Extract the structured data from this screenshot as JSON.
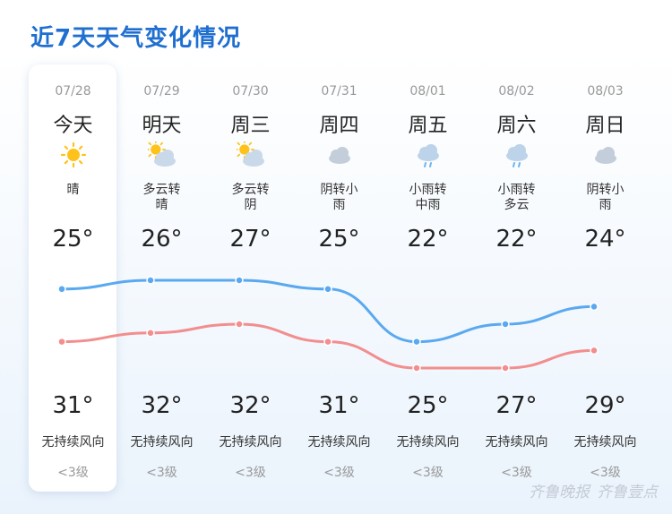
{
  "title": "近7天天气变化情况",
  "days": [
    {
      "date": "07/28",
      "name": "今天",
      "icon": "sun-icon",
      "desc": [
        "晴"
      ],
      "high": "25°",
      "low": "31°",
      "wind": "无持续风向",
      "level": "<3级"
    },
    {
      "date": "07/29",
      "name": "明天",
      "icon": "partly-cloudy-icon",
      "desc": [
        "多云转",
        "晴"
      ],
      "high": "26°",
      "low": "32°",
      "wind": "无持续风向",
      "level": "<3级"
    },
    {
      "date": "07/30",
      "name": "周三",
      "icon": "partly-cloudy-icon",
      "desc": [
        "多云转",
        "阴"
      ],
      "high": "27°",
      "low": "32°",
      "wind": "无持续风向",
      "level": "<3级"
    },
    {
      "date": "07/31",
      "name": "周四",
      "icon": "cloud-icon",
      "desc": [
        "阴转小",
        "雨"
      ],
      "high": "25°",
      "low": "31°",
      "wind": "无持续风向",
      "level": "<3级"
    },
    {
      "date": "08/01",
      "name": "周五",
      "icon": "light-rain-icon",
      "desc": [
        "小雨转",
        "中雨"
      ],
      "high": "22°",
      "low": "25°",
      "wind": "无持续风向",
      "level": "<3级"
    },
    {
      "date": "08/02",
      "name": "周六",
      "icon": "light-rain-icon",
      "desc": [
        "小雨转",
        "多云"
      ],
      "high": "22°",
      "low": "27°",
      "wind": "无持续风向",
      "level": "<3级"
    },
    {
      "date": "08/03",
      "name": "周日",
      "icon": "cloud-icon",
      "desc": [
        "阴转小",
        "雨"
      ],
      "high": "24°",
      "low": "29°",
      "wind": "无持续风向",
      "level": "<3级"
    }
  ],
  "chart_data": {
    "type": "line",
    "categories": [
      "07/28",
      "07/29",
      "07/30",
      "07/31",
      "08/01",
      "08/02",
      "08/03"
    ],
    "series": [
      {
        "values": [
          25,
          26,
          27,
          25,
          22,
          22,
          24
        ],
        "color": "#f28e8e"
      },
      {
        "values": [
          31,
          32,
          32,
          31,
          25,
          27,
          29
        ],
        "color": "#5aa9f0"
      }
    ]
  },
  "colors": {
    "accent": "#1f6fd0",
    "high_line": "#f28e8e",
    "low_line": "#5aa9f0"
  },
  "watermark": {
    "text_left": "齐鲁晚报",
    "text_right": "齐鲁壹点"
  }
}
